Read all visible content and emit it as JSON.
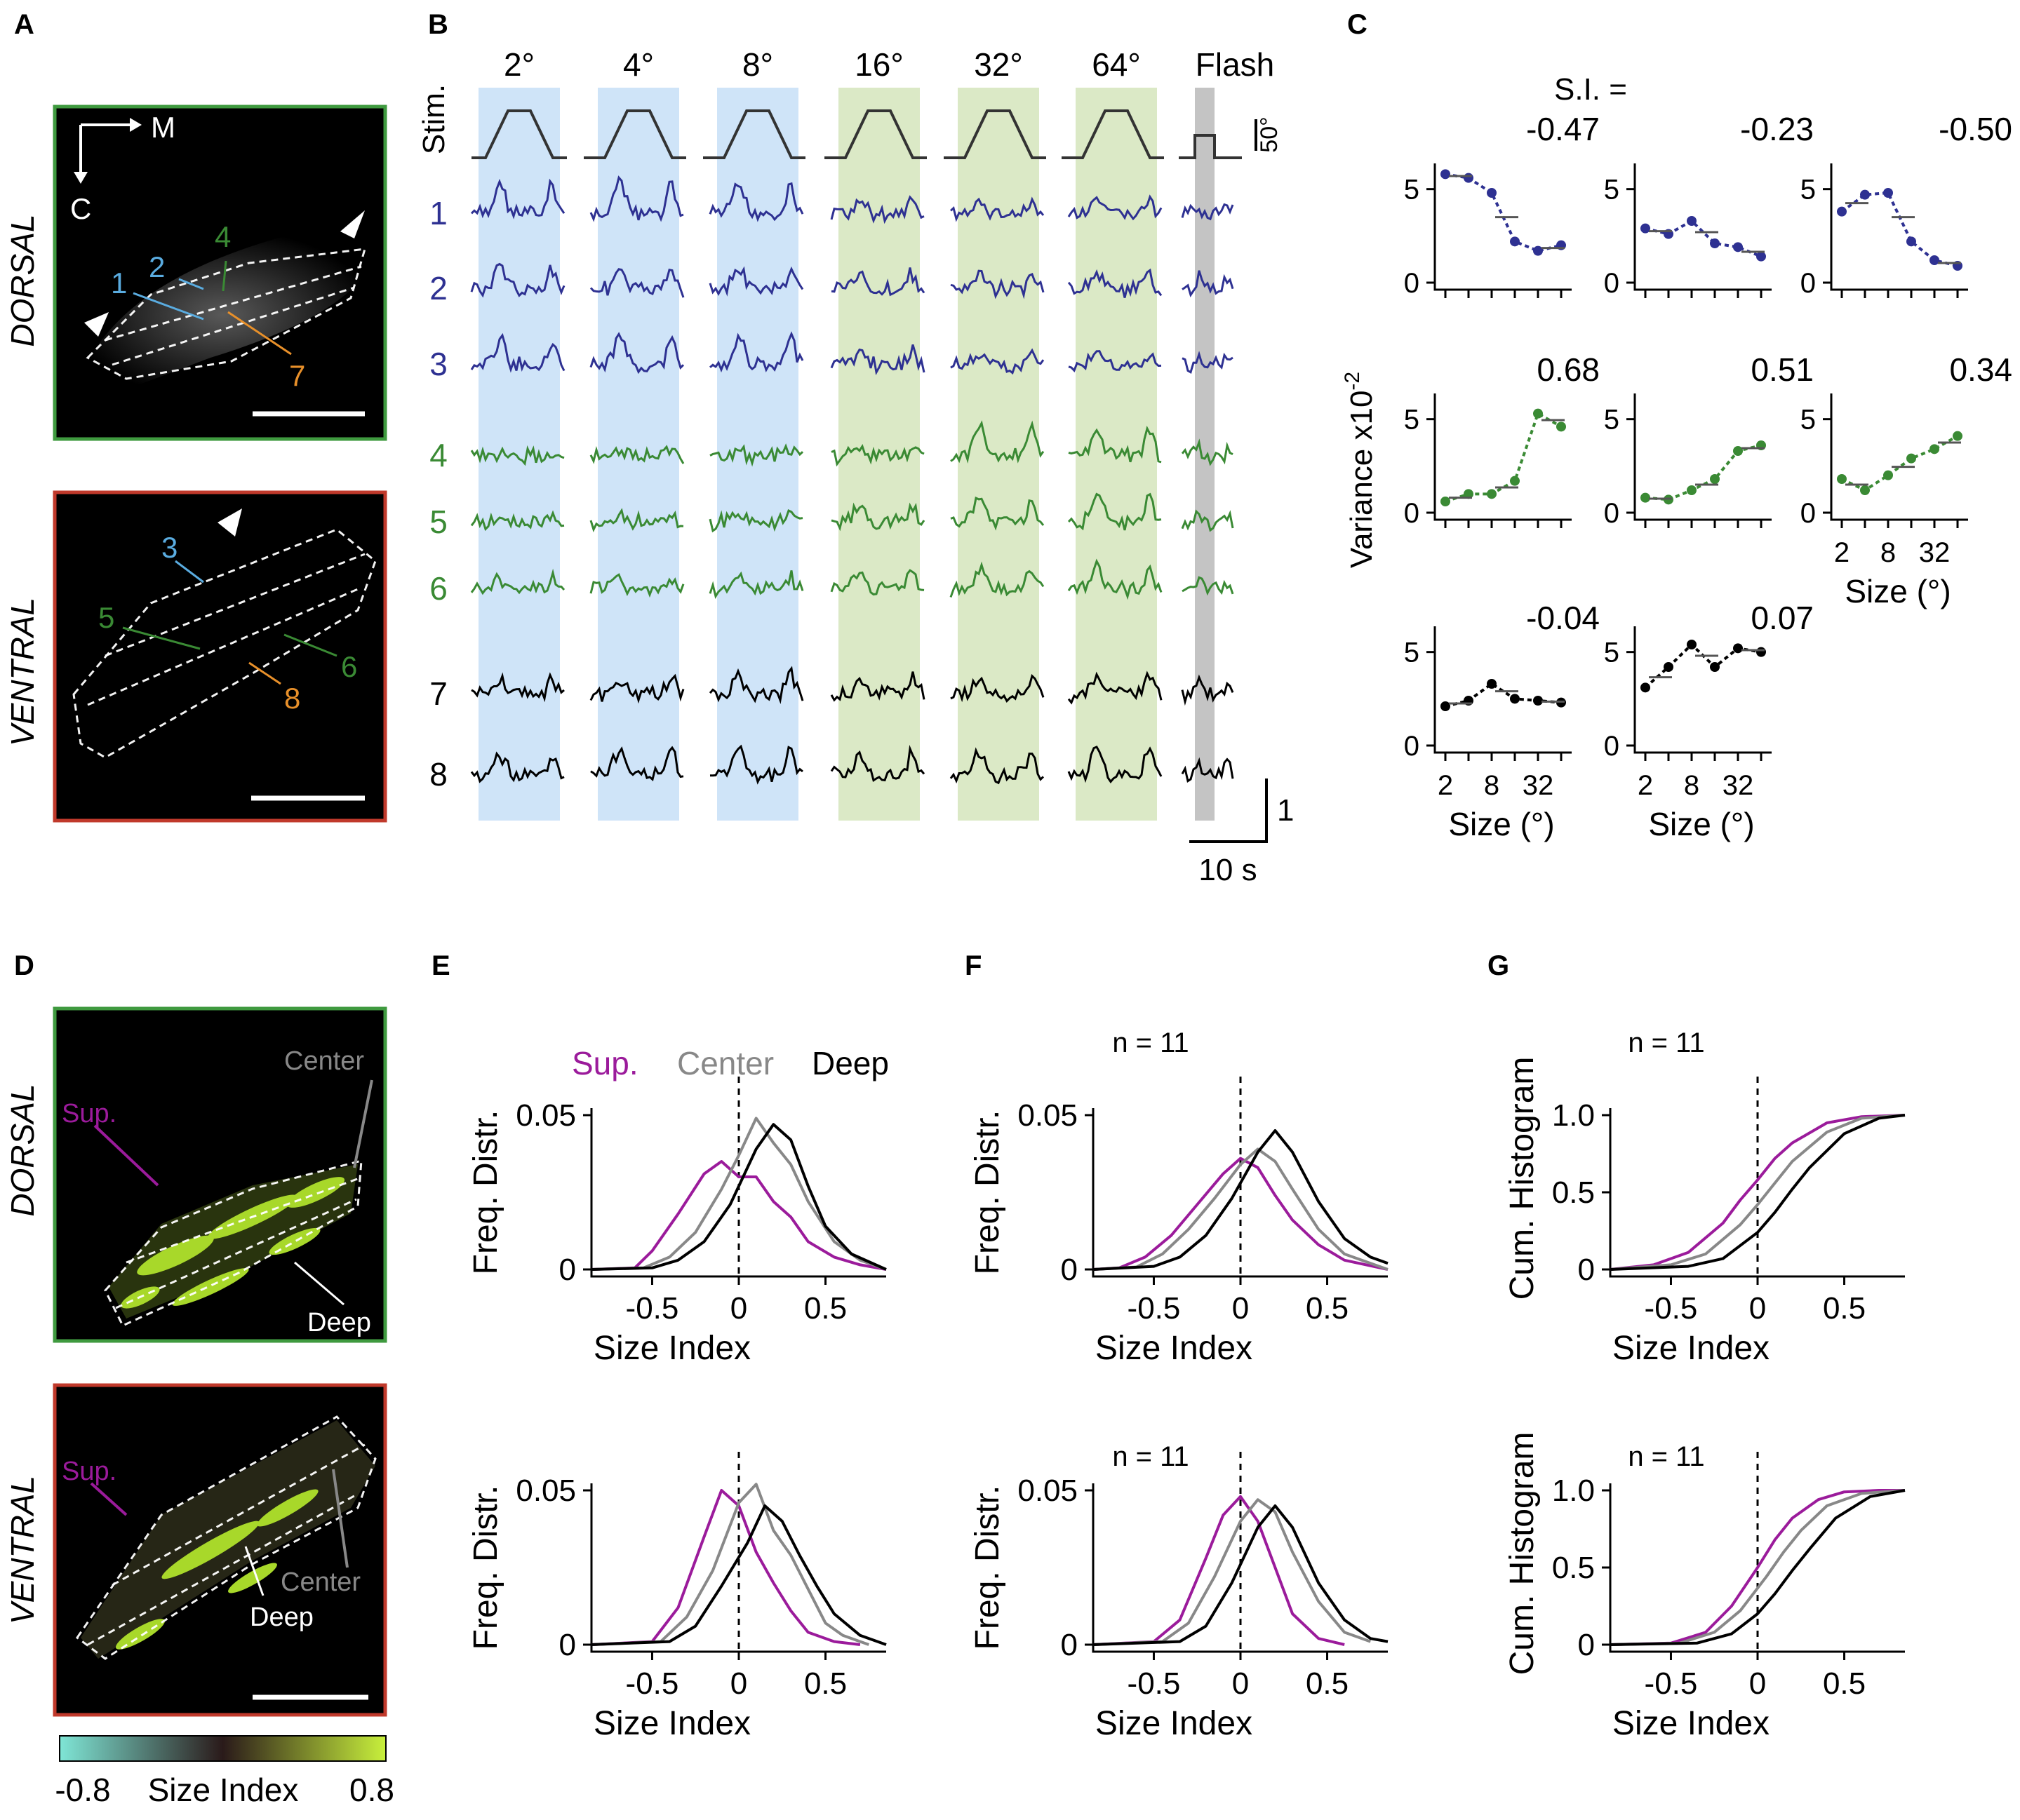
{
  "panels": {
    "A": "A",
    "B": "B",
    "C": "C",
    "D": "D",
    "E": "E",
    "F": "F",
    "G": "G"
  },
  "colors": {
    "dorsal_frame": "#3f9a3f",
    "ventral_frame": "#c0392b",
    "blue_cell": "#2e3192",
    "green_cell": "#3a8a34",
    "black_cell": "#000000",
    "blue_shade": "#cfe4f8",
    "green_shade": "#dbe9c6",
    "flash_shade": "#c4c4c4",
    "sup": "#9b1b9b",
    "center": "#888888",
    "deep": "#000000",
    "roi_label_light_blue": "#5aace0",
    "roi_label_green": "#3a8a34",
    "roi_label_orange": "#e8902a",
    "colorbar": [
      "#7fe6d6",
      "#2a2a2a",
      "#c8f03c"
    ]
  },
  "panel_a": {
    "dorsal_label": "DORSAL",
    "ventral_label": "VENTRAL",
    "axis_m": "M",
    "axis_c": "C",
    "dorsal_rois": [
      "1",
      "2",
      "4",
      "7"
    ],
    "ventral_rois": [
      "3",
      "5",
      "6",
      "8"
    ]
  },
  "panel_b": {
    "stim_label": "Stim.",
    "sizes": [
      "2°",
      "4°",
      "8°",
      "16°",
      "32°",
      "64°",
      "Flash"
    ],
    "stim_scale": "50°",
    "cells": [
      "1",
      "2",
      "3",
      "4",
      "5",
      "6",
      "7",
      "8"
    ],
    "scale_y": "1",
    "scale_x": "10 s"
  },
  "panel_c": {
    "si_prefix": "S.I. =",
    "si_values": [
      "-0.47",
      "-0.23",
      "-0.50",
      "0.68",
      "0.51",
      "0.34",
      "-0.04",
      "0.07"
    ],
    "ylabel": "Variance x10",
    "ylabel_exp": "-2",
    "yticks": [
      "0",
      "5"
    ],
    "xticks": [
      "2",
      "8",
      "32"
    ],
    "xlabel": "Size (°)"
  },
  "panel_d": {
    "dorsal_label": "DORSAL",
    "ventral_label": "VENTRAL",
    "sup": "Sup.",
    "center": "Center",
    "deep": "Deep",
    "colorbar_min": "-0.8",
    "colorbar_label": "Size Index",
    "colorbar_max": "0.8"
  },
  "panel_e": {
    "legend_sup": "Sup.",
    "legend_center": "Center",
    "legend_deep": "Deep",
    "ylabel": "Freq. Distr.",
    "xlabel": "Size Index",
    "yticks": [
      "0",
      "0.05"
    ],
    "xticks": [
      "-0.5",
      "0",
      "0.5"
    ]
  },
  "panel_f": {
    "n_label": "n = 11",
    "ylabel": "Freq. Distr.",
    "xlabel": "Size Index",
    "yticks": [
      "0",
      "0.05"
    ],
    "xticks": [
      "-0.5",
      "0",
      "0.5"
    ]
  },
  "panel_g": {
    "n_label": "n = 11",
    "ylabel": "Cum. Histogram",
    "xlabel": "Size Index",
    "yticks": [
      "0",
      "0.5",
      "1.0"
    ],
    "xticks": [
      "-0.5",
      "0",
      "0.5"
    ]
  },
  "chart_data": [
    {
      "type": "line",
      "id": "C-variance-vs-size",
      "xlabel": "Size (°)",
      "ylabel": "Variance x10-2",
      "x": [
        2,
        4,
        8,
        16,
        32,
        64
      ],
      "ylim": [
        0,
        6
      ],
      "series": [
        {
          "values": [
            5.8,
            5.6,
            4.8,
            2.2,
            1.7,
            2.0
          ]
        },
        {
          "values": [
            2.9,
            2.6,
            3.3,
            2.1,
            1.9,
            1.4
          ]
        },
        {
          "values": [
            3.8,
            4.7,
            4.8,
            2.2,
            1.2,
            0.9
          ]
        },
        {
          "values": [
            0.6,
            1.0,
            1.0,
            1.7,
            5.3,
            4.6
          ]
        },
        {
          "values": [
            0.8,
            0.7,
            1.2,
            1.8,
            3.3,
            3.6
          ]
        },
        {
          "values": [
            1.8,
            1.2,
            2.0,
            2.9,
            3.4,
            4.1
          ]
        },
        {
          "values": [
            2.1,
            2.4,
            3.3,
            2.5,
            2.4,
            2.3
          ]
        },
        {
          "values": [
            3.1,
            4.2,
            5.4,
            4.2,
            5.2,
            5.0
          ]
        }
      ]
    },
    {
      "type": "line",
      "id": "E-dorsal",
      "xlabel": "Size Index",
      "ylabel": "Freq. Distr.",
      "xlim": [
        -0.85,
        0.85
      ],
      "ylim": [
        0,
        0.05
      ],
      "series": [
        {
          "name": "Sup.",
          "x": [
            -0.85,
            -0.6,
            -0.5,
            -0.35,
            -0.2,
            -0.1,
            0.0,
            0.1,
            0.2,
            0.3,
            0.4,
            0.55,
            0.7,
            0.85
          ],
          "values": [
            0,
            0.0005,
            0.006,
            0.018,
            0.031,
            0.035,
            0.03,
            0.03,
            0.022,
            0.017,
            0.009,
            0.004,
            0.0015,
            0
          ]
        },
        {
          "name": "Center",
          "x": [
            -0.85,
            -0.55,
            -0.4,
            -0.25,
            -0.1,
            0.0,
            0.1,
            0.2,
            0.3,
            0.4,
            0.55,
            0.7,
            0.85
          ],
          "values": [
            0,
            0.0005,
            0.004,
            0.012,
            0.026,
            0.037,
            0.049,
            0.041,
            0.034,
            0.022,
            0.009,
            0.003,
            0
          ]
        },
        {
          "name": "Deep",
          "x": [
            -0.85,
            -0.5,
            -0.35,
            -0.2,
            -0.05,
            0.1,
            0.2,
            0.3,
            0.4,
            0.5,
            0.65,
            0.85
          ],
          "values": [
            0,
            0.0005,
            0.003,
            0.009,
            0.021,
            0.039,
            0.047,
            0.042,
            0.027,
            0.014,
            0.005,
            0
          ]
        }
      ]
    },
    {
      "type": "line",
      "id": "E-ventral",
      "xlabel": "Size Index",
      "ylabel": "Freq. Distr.",
      "xlim": [
        -0.85,
        0.85
      ],
      "ylim": [
        0,
        0.05
      ],
      "series": [
        {
          "name": "Sup.",
          "x": [
            -0.85,
            -0.5,
            -0.35,
            -0.2,
            -0.1,
            0.0,
            0.1,
            0.2,
            0.3,
            0.4,
            0.55,
            0.7
          ],
          "values": [
            0,
            0.001,
            0.012,
            0.035,
            0.05,
            0.045,
            0.03,
            0.02,
            0.011,
            0.004,
            0.001,
            0
          ]
        },
        {
          "name": "Center",
          "x": [
            -0.85,
            -0.45,
            -0.3,
            -0.15,
            0.0,
            0.1,
            0.2,
            0.3,
            0.4,
            0.5,
            0.6,
            0.75
          ],
          "values": [
            0,
            0.001,
            0.009,
            0.024,
            0.046,
            0.052,
            0.037,
            0.029,
            0.018,
            0.007,
            0.003,
            0
          ]
        },
        {
          "name": "Deep",
          "x": [
            -0.85,
            -0.4,
            -0.25,
            -0.1,
            0.05,
            0.15,
            0.25,
            0.35,
            0.45,
            0.55,
            0.7,
            0.85
          ],
          "values": [
            0,
            0.001,
            0.006,
            0.019,
            0.033,
            0.045,
            0.04,
            0.029,
            0.019,
            0.01,
            0.003,
            0
          ]
        }
      ]
    },
    {
      "type": "line",
      "id": "F-dorsal",
      "xlabel": "Size Index",
      "ylabel": "Freq. Distr.",
      "xlim": [
        -0.85,
        0.85
      ],
      "ylim": [
        0,
        0.05
      ],
      "series": [
        {
          "name": "Sup.",
          "x": [
            -0.85,
            -0.7,
            -0.55,
            -0.4,
            -0.25,
            -0.1,
            0.0,
            0.1,
            0.2,
            0.3,
            0.45,
            0.6,
            0.85
          ],
          "values": [
            0,
            0.0005,
            0.004,
            0.011,
            0.021,
            0.031,
            0.036,
            0.033,
            0.024,
            0.016,
            0.008,
            0.003,
            0
          ]
        },
        {
          "name": "Center",
          "x": [
            -0.85,
            -0.6,
            -0.45,
            -0.3,
            -0.15,
            0.0,
            0.1,
            0.2,
            0.3,
            0.45,
            0.6,
            0.85
          ],
          "values": [
            0,
            0.0008,
            0.005,
            0.013,
            0.023,
            0.034,
            0.039,
            0.035,
            0.026,
            0.013,
            0.005,
            0
          ]
        },
        {
          "name": "Deep",
          "x": [
            -0.85,
            -0.5,
            -0.35,
            -0.2,
            -0.05,
            0.1,
            0.2,
            0.3,
            0.45,
            0.6,
            0.75,
            0.85
          ],
          "values": [
            0,
            0.001,
            0.004,
            0.011,
            0.023,
            0.038,
            0.045,
            0.038,
            0.022,
            0.01,
            0.004,
            0.002
          ]
        }
      ]
    },
    {
      "type": "line",
      "id": "F-ventral",
      "xlabel": "Size Index",
      "ylabel": "Freq. Distr.",
      "xlim": [
        -0.85,
        0.85
      ],
      "ylim": [
        0,
        0.05
      ],
      "series": [
        {
          "name": "Sup.",
          "x": [
            -0.85,
            -0.5,
            -0.35,
            -0.2,
            -0.1,
            0.0,
            0.1,
            0.2,
            0.3,
            0.45,
            0.6
          ],
          "values": [
            0,
            0.001,
            0.008,
            0.028,
            0.042,
            0.048,
            0.04,
            0.025,
            0.01,
            0.002,
            0
          ]
        },
        {
          "name": "Center",
          "x": [
            -0.85,
            -0.45,
            -0.3,
            -0.15,
            0.0,
            0.1,
            0.2,
            0.3,
            0.45,
            0.6,
            0.75
          ],
          "values": [
            0,
            0.001,
            0.007,
            0.022,
            0.04,
            0.047,
            0.043,
            0.03,
            0.014,
            0.004,
            0.001
          ]
        },
        {
          "name": "Deep",
          "x": [
            -0.85,
            -0.35,
            -0.2,
            -0.05,
            0.1,
            0.2,
            0.3,
            0.45,
            0.6,
            0.75,
            0.85
          ],
          "values": [
            0,
            0.001,
            0.006,
            0.02,
            0.038,
            0.045,
            0.038,
            0.02,
            0.008,
            0.002,
            0.001
          ]
        }
      ]
    },
    {
      "type": "line",
      "id": "G-dorsal",
      "xlabel": "Size Index",
      "ylabel": "Cum. Histogram",
      "xlim": [
        -0.85,
        0.85
      ],
      "ylim": [
        0,
        1.0
      ],
      "series": [
        {
          "name": "Sup.",
          "x": [
            -0.85,
            -0.6,
            -0.4,
            -0.2,
            -0.1,
            0.0,
            0.1,
            0.2,
            0.4,
            0.6,
            0.85
          ],
          "values": [
            0,
            0.03,
            0.11,
            0.3,
            0.45,
            0.58,
            0.72,
            0.82,
            0.95,
            0.99,
            1.0
          ]
        },
        {
          "name": "Center",
          "x": [
            -0.85,
            -0.5,
            -0.3,
            -0.1,
            0.0,
            0.1,
            0.2,
            0.4,
            0.6,
            0.85
          ],
          "values": [
            0,
            0.03,
            0.1,
            0.29,
            0.42,
            0.56,
            0.7,
            0.89,
            0.98,
            1.0
          ]
        },
        {
          "name": "Deep",
          "x": [
            -0.85,
            -0.4,
            -0.2,
            0.0,
            0.1,
            0.2,
            0.3,
            0.5,
            0.7,
            0.85
          ],
          "values": [
            0,
            0.02,
            0.07,
            0.24,
            0.37,
            0.52,
            0.66,
            0.88,
            0.98,
            1.0
          ]
        }
      ]
    },
    {
      "type": "line",
      "id": "G-ventral",
      "xlabel": "Size Index",
      "ylabel": "Cum. Histogram",
      "xlim": [
        -0.85,
        0.85
      ],
      "ylim": [
        0,
        1.0
      ],
      "series": [
        {
          "name": "Sup.",
          "x": [
            -0.85,
            -0.5,
            -0.3,
            -0.15,
            0.0,
            0.1,
            0.2,
            0.35,
            0.5,
            0.7,
            0.85
          ],
          "values": [
            0,
            0.01,
            0.08,
            0.25,
            0.5,
            0.68,
            0.82,
            0.94,
            0.99,
            1.0,
            1.0
          ]
        },
        {
          "name": "Center",
          "x": [
            -0.85,
            -0.45,
            -0.25,
            -0.1,
            0.05,
            0.15,
            0.25,
            0.4,
            0.6,
            0.85
          ],
          "values": [
            0,
            0.01,
            0.08,
            0.22,
            0.44,
            0.6,
            0.74,
            0.9,
            0.98,
            1.0
          ]
        },
        {
          "name": "Deep",
          "x": [
            -0.85,
            -0.35,
            -0.15,
            0.0,
            0.1,
            0.2,
            0.3,
            0.45,
            0.65,
            0.85
          ],
          "values": [
            0,
            0.01,
            0.07,
            0.2,
            0.33,
            0.48,
            0.62,
            0.82,
            0.96,
            1.0
          ]
        }
      ]
    }
  ]
}
